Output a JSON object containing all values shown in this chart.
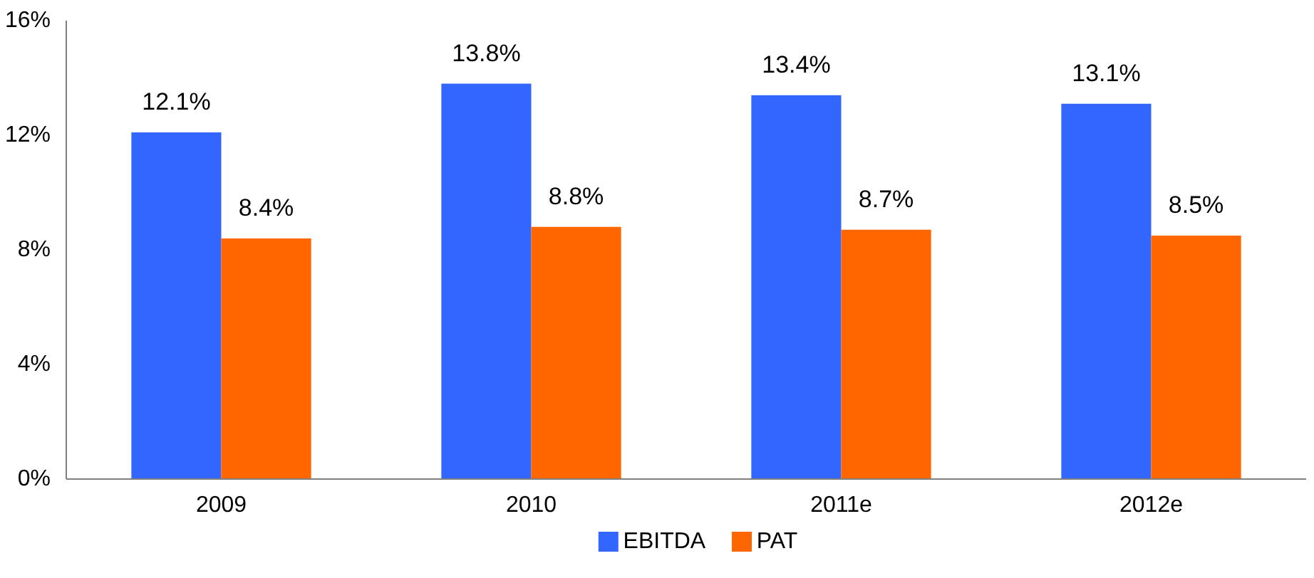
{
  "chart_data": {
    "type": "bar",
    "categories": [
      "2009",
      "2010",
      "2011e",
      "2012e"
    ],
    "series": [
      {
        "name": "EBITDA",
        "color": "#3366ff",
        "values": [
          12.1,
          13.8,
          13.4,
          13.1
        ],
        "value_labels": [
          "12.1%",
          "13.8%",
          "13.4%",
          "13.1%"
        ]
      },
      {
        "name": "PAT",
        "color": "#ff6600",
        "values": [
          8.4,
          8.8,
          8.7,
          8.5
        ],
        "value_labels": [
          "8.4%",
          "8.8%",
          "8.7%",
          "8.5%"
        ]
      }
    ],
    "ylim": [
      0,
      16
    ],
    "yticks": [
      {
        "value": 0,
        "label": "0%"
      },
      {
        "value": 4,
        "label": "4%"
      },
      {
        "value": 8,
        "label": "8%"
      },
      {
        "value": 12,
        "label": "12%"
      },
      {
        "value": 16,
        "label": "16%"
      }
    ],
    "grid": false,
    "legend": "bottom"
  }
}
